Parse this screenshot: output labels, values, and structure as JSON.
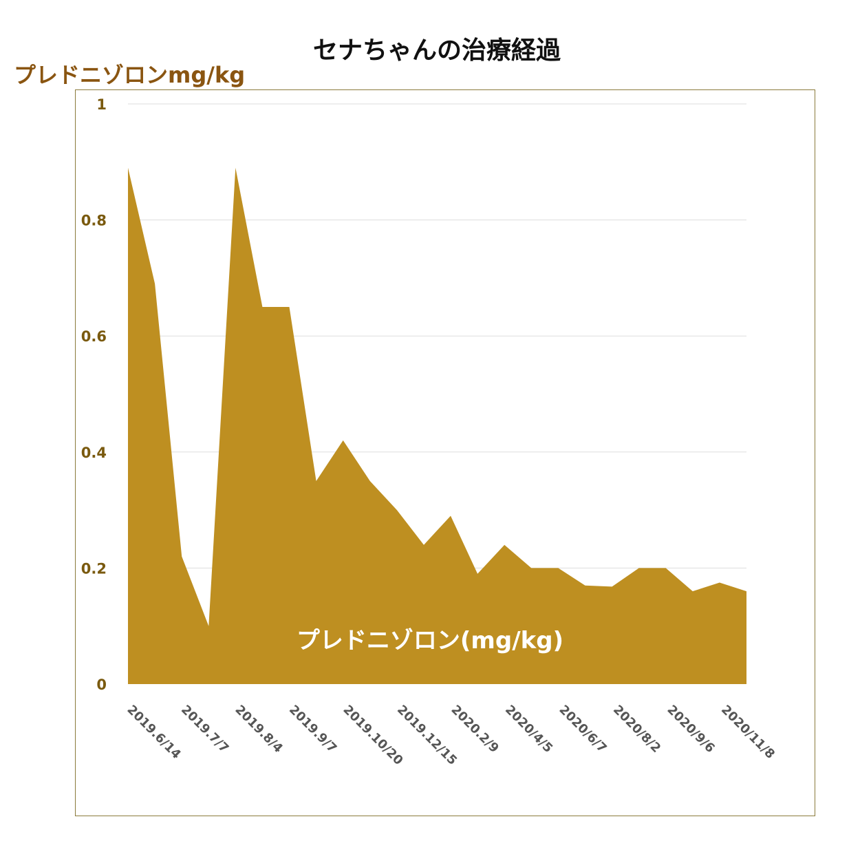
{
  "chart_data": {
    "type": "area",
    "title": "セナちゃんの治療経過",
    "ylabel": "プレドニゾロンmg/kg",
    "xlabel": "",
    "ylim": [
      0,
      1
    ],
    "yticks": [
      "0",
      "0.2",
      "0.4",
      "0.6",
      "0.8",
      "1"
    ],
    "x_tick_labels": [
      "2019.6/14",
      "2019.7/7",
      "2019.8/4",
      "2019.9/7",
      "2019.10/20",
      "2019.12/15",
      "2020.2/9",
      "2020/4/5",
      "2020/6/7",
      "2020/8/2",
      "2020/9/6",
      "2020/11/8"
    ],
    "grid": true,
    "series": [
      {
        "name": "プレドニゾロン(mg/kg)",
        "values": [
          0.89,
          0.69,
          0.22,
          0.1,
          0.89,
          0.65,
          0.65,
          0.35,
          0.42,
          0.35,
          0.3,
          0.24,
          0.29,
          0.19,
          0.24,
          0.2,
          0.2,
          0.17,
          0.168,
          0.2,
          0.2,
          0.16,
          0.175,
          0.16
        ]
      }
    ],
    "colors": {
      "area": "#be8f21",
      "axis_text": "#7a5a0f",
      "y_title": "#8a5511",
      "grid": "#dddddd",
      "frame": "#8a7a3a"
    }
  }
}
